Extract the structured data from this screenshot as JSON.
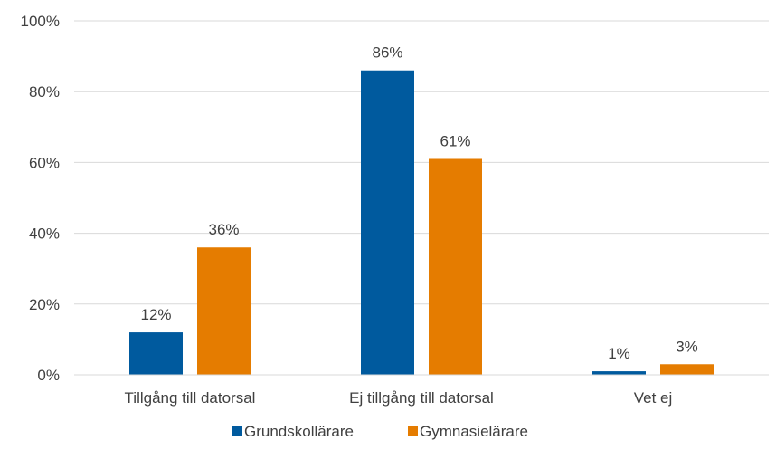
{
  "chart_data": {
    "type": "bar",
    "categories": [
      "Tillgång till datorsal",
      "Ej tillgång till datorsal",
      "Vet ej"
    ],
    "series": [
      {
        "name": "Grundskollärare",
        "values": [
          12,
          86,
          1
        ],
        "labels": [
          "12%",
          "86%",
          "1%"
        ],
        "color": "#005a9e"
      },
      {
        "name": "Gymnasielärare",
        "values": [
          36,
          61,
          3
        ],
        "labels": [
          "36%",
          "61%",
          "3%"
        ],
        "color": "#e57c00"
      }
    ],
    "yticks": [
      "0%",
      "20%",
      "40%",
      "60%",
      "80%",
      "100%"
    ],
    "ylim": [
      0,
      100
    ],
    "grid": true,
    "legend_position": "bottom"
  }
}
